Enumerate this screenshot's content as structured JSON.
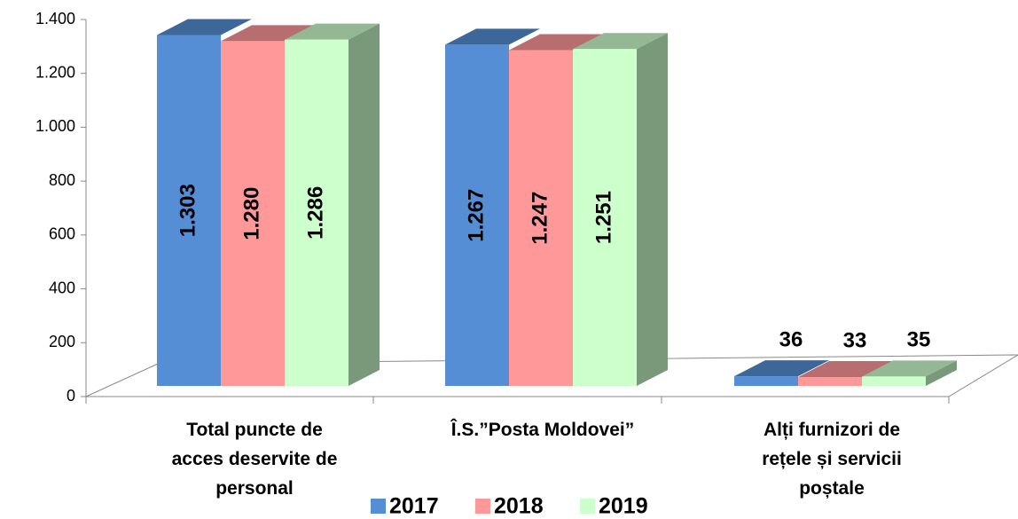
{
  "chart_data": {
    "type": "bar3d",
    "categories": [
      "Total puncte de acces deservite de personal",
      "Î.S.”Posta Moldovei”",
      "Alți furnizori de rețele și servicii poștale"
    ],
    "series": [
      {
        "name": "2017",
        "color": "#558ed5",
        "values": [
          1303,
          1267,
          36
        ],
        "value_labels": [
          "1.303",
          "1.267",
          "36"
        ]
      },
      {
        "name": "2018",
        "color": "#ff9999",
        "values": [
          1280,
          1247,
          33
        ],
        "value_labels": [
          "1.280",
          "1.247",
          "33"
        ]
      },
      {
        "name": "2019",
        "color": "#ccffcc",
        "values": [
          1286,
          1251,
          35
        ],
        "value_labels": [
          "1.286",
          "1.251",
          "35"
        ]
      }
    ],
    "ylim": [
      0,
      1400
    ],
    "yticks": [
      0,
      200,
      {
        "value": 400,
        "label": "400"
      },
      600,
      800,
      {
        "value": 1000,
        "label": "1.000"
      },
      {
        "value": 1200,
        "label": "1.200"
      },
      {
        "value": 1400,
        "label": "1.400"
      }
    ],
    "legend": "bottom"
  }
}
